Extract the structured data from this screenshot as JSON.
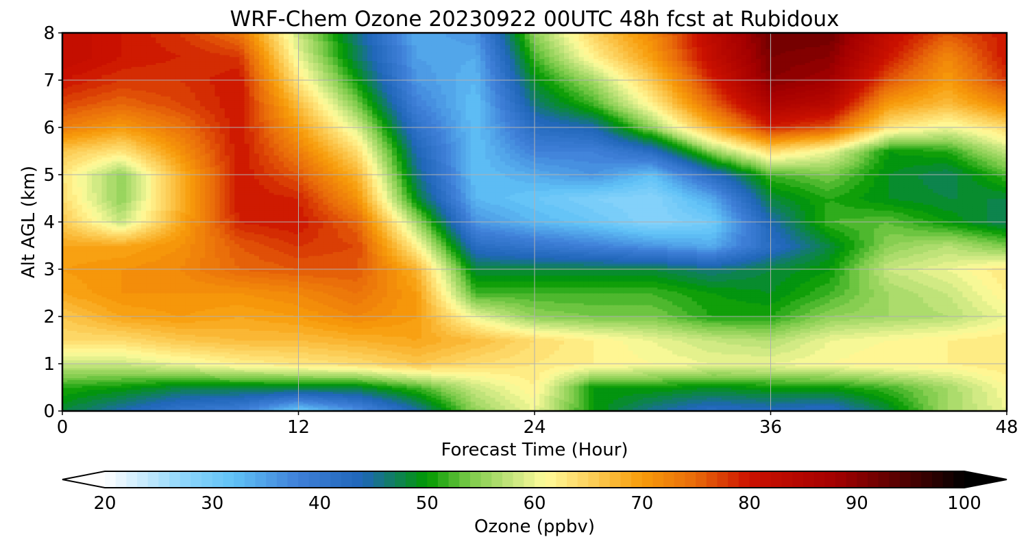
{
  "chart_data": {
    "type": "heatmap",
    "title": "WRF-Chem Ozone  20230922 00UTC 48h fcst at Rubidoux",
    "xlabel": "Forecast Time (Hour)",
    "ylabel": "Alt AGL (km)",
    "xlim": [
      0,
      48
    ],
    "ylim": [
      0,
      8
    ],
    "xticks": [
      "0",
      "12",
      "24",
      "36",
      "48"
    ],
    "yticks": [
      "0",
      "1",
      "2",
      "3",
      "4",
      "5",
      "6",
      "7",
      "8"
    ],
    "grid": true,
    "x": [
      0,
      3,
      6,
      9,
      12,
      15,
      18,
      21,
      24,
      27,
      30,
      33,
      36,
      39,
      42,
      45,
      48
    ],
    "y": [
      0,
      0.5,
      1,
      1.5,
      2,
      2.5,
      3,
      3.5,
      4,
      4.5,
      5,
      5.5,
      6,
      6.5,
      7,
      7.5,
      8
    ],
    "z": [
      [
        48,
        44,
        40,
        38,
        30,
        36,
        44,
        55,
        60,
        50,
        45,
        42,
        43,
        42,
        48,
        56,
        60
      ],
      [
        51,
        50,
        48,
        48,
        48,
        48,
        52,
        58,
        62,
        50,
        50,
        49,
        50,
        50,
        52,
        56,
        61
      ],
      [
        58,
        58,
        60,
        62,
        63,
        64,
        66,
        64,
        63,
        62,
        61,
        60,
        60,
        61,
        62,
        62,
        63
      ],
      [
        64,
        64,
        66,
        67,
        67,
        68,
        69,
        67,
        64,
        62,
        60,
        58,
        57,
        60,
        61,
        62,
        63
      ],
      [
        66,
        69,
        70,
        69,
        70,
        72,
        70,
        60,
        55,
        54,
        54,
        51,
        51,
        55,
        56,
        57,
        60
      ],
      [
        69,
        71,
        71,
        71,
        72,
        74,
        70,
        52,
        52,
        52,
        52,
        50,
        49,
        52,
        56,
        58,
        62
      ],
      [
        70,
        71,
        72,
        75,
        76,
        76,
        68,
        48,
        48,
        48,
        48,
        46,
        48,
        50,
        58,
        60,
        63
      ],
      [
        69,
        69,
        71,
        76,
        78,
        77,
        62,
        42,
        40,
        38,
        36,
        34,
        42,
        48,
        55,
        57,
        54
      ],
      [
        66,
        58,
        69,
        79,
        80,
        75,
        56,
        36,
        33,
        31,
        28,
        30,
        44,
        52,
        53,
        50,
        47
      ],
      [
        64,
        55,
        68,
        80,
        79,
        71,
        49,
        33,
        31,
        29,
        28,
        34,
        48,
        51,
        49,
        48,
        48
      ],
      [
        63,
        55,
        68,
        80,
        76,
        68,
        46,
        32,
        34,
        36,
        32,
        42,
        52,
        54,
        49,
        47,
        52
      ],
      [
        66,
        63,
        71,
        80,
        73,
        64,
        44,
        32,
        38,
        38,
        42,
        55,
        64,
        60,
        50,
        51,
        58
      ],
      [
        73,
        70,
        74,
        80,
        70,
        59,
        41,
        32,
        42,
        44,
        55,
        68,
        79,
        76,
        63,
        60,
        64
      ],
      [
        77,
        75,
        77,
        80,
        67,
        54,
        38,
        32,
        46,
        52,
        62,
        75,
        86,
        84,
        70,
        67,
        72
      ],
      [
        80,
        78,
        78,
        80,
        63,
        50,
        36,
        33,
        49,
        56,
        66,
        79,
        90,
        88,
        76,
        70,
        78
      ],
      [
        82,
        80,
        79,
        78,
        60,
        47,
        35,
        34,
        52,
        62,
        70,
        82,
        91,
        90,
        80,
        72,
        80
      ],
      [
        82,
        80,
        78,
        74,
        58,
        46,
        34,
        36,
        55,
        65,
        72,
        83,
        92,
        92,
        82,
        76,
        80
      ]
    ],
    "colorbar": {
      "label": "Ozone  (ppbv)",
      "min": 20,
      "max": 100,
      "step": 1,
      "extend": "both",
      "ticks": [
        "20",
        "30",
        "40",
        "50",
        "60",
        "70",
        "80",
        "90",
        "100"
      ],
      "colors": [
        "#ffffff",
        "#92d7fb",
        "#60c2f6",
        "#3f7fd8",
        "#1f66b8",
        "#009900",
        "#7ccb4a",
        "#c8e680",
        "#fffb9a",
        "#fdd25e",
        "#f79c0a",
        "#e86a0a",
        "#cc1100",
        "#a30000",
        "#3c0000",
        "#000000"
      ],
      "color_values": [
        20,
        27,
        32,
        38,
        44,
        50,
        54,
        58,
        61,
        65,
        70,
        75,
        80,
        88,
        96,
        100
      ]
    }
  }
}
